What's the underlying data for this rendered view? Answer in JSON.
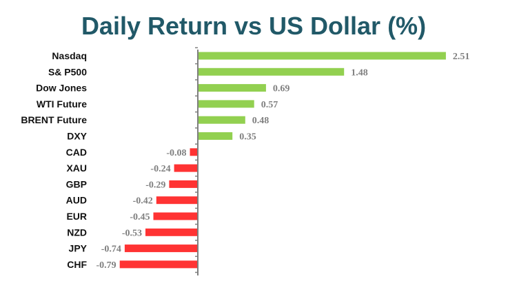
{
  "chart_data": {
    "type": "bar",
    "orientation": "horizontal",
    "title": "Daily Return vs US Dollar (%)",
    "categories": [
      "Nasdaq",
      "S& P500",
      "Dow Jones",
      "WTI Future",
      "BRENT Future",
      "DXY",
      "CAD",
      "XAU",
      "GBP",
      "AUD",
      "EUR",
      "NZD",
      "JPY",
      "CHF"
    ],
    "values": [
      2.51,
      1.48,
      0.69,
      0.57,
      0.48,
      0.35,
      -0.08,
      -0.24,
      -0.29,
      -0.42,
      -0.45,
      -0.53,
      -0.74,
      -0.79
    ],
    "value_labels": [
      "2.51",
      "1.48",
      "0.69",
      "0.57",
      "0.48",
      "0.35",
      "-0.08",
      "-0.24",
      "-0.29",
      "-0.42",
      "-0.45",
      "-0.53",
      "-0.74",
      "-0.79"
    ],
    "xlabel": "",
    "ylabel": "",
    "grid": false,
    "legend": "none",
    "colors": {
      "positive": "#92d050",
      "negative": "#ff3333",
      "title": "#215968",
      "value_label": "#7f7f7f",
      "axis": "#7f7f7f"
    }
  }
}
